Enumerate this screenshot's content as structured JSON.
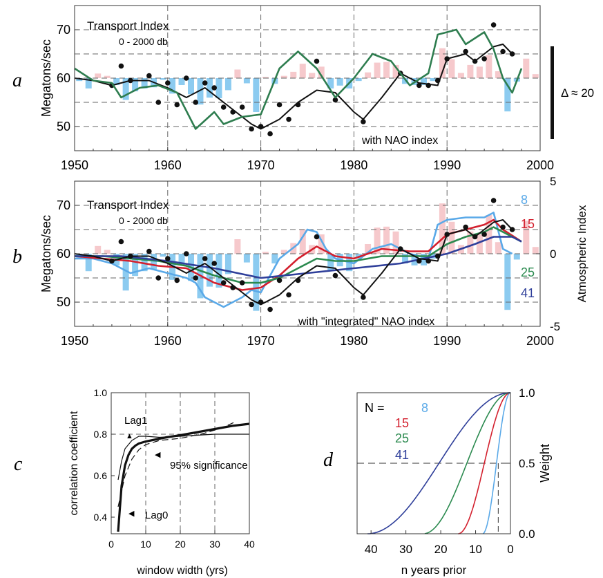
{
  "colors": {
    "nao_positive": "#f6c9cc",
    "nao_negative": "#8ccbf0",
    "black": "#111111",
    "green_a": "#2e7d4f",
    "n8": "#5aa9e8",
    "n15": "#d3202e",
    "n25": "#2b8a4f",
    "n41": "#2f3f9a",
    "grid": "#666666"
  },
  "chart_data": [
    {
      "panel": "a",
      "type": "line",
      "panel_label": "a",
      "title": "Transport Index",
      "subtitle": "0 - 2000 db",
      "ylabel": "Megatons/sec",
      "annotation": "with NAO index",
      "scale_bar_label": "Δ ≈ 20",
      "xlim": [
        1950,
        2000
      ],
      "ylim": [
        45,
        75
      ],
      "xticks": [
        1950,
        1960,
        1970,
        1980,
        1990,
        2000
      ],
      "yticks": [
        50,
        60,
        70
      ],
      "grid": true,
      "series": [
        {
          "kind": "points",
          "color_key": "black",
          "x": [
            1954,
            1955,
            1956,
            1958,
            1959,
            1960,
            1961,
            1962,
            1963,
            1964,
            1965,
            1966,
            1967,
            1968,
            1969,
            1970,
            1971,
            1972,
            1973,
            1974,
            1976,
            1978,
            1981,
            1985,
            1987,
            1988,
            1989,
            1990,
            1992,
            1993,
            1994,
            1995,
            1996,
            1997
          ],
          "y": [
            58.5,
            62.5,
            59.5,
            60.5,
            55,
            59,
            54.5,
            60,
            55,
            59,
            58,
            54,
            53,
            54,
            49.5,
            50,
            48.5,
            54.5,
            51.5,
            54.5,
            63.5,
            55.5,
            51,
            61,
            58.5,
            58.5,
            59.5,
            64,
            65.5,
            63.5,
            64,
            71,
            65.5,
            65
          ]
        },
        {
          "kind": "line",
          "color_key": "black",
          "x": [
            1950,
            1952,
            1954,
            1956,
            1958,
            1960,
            1962,
            1964,
            1966,
            1968,
            1969,
            1970,
            1972,
            1974,
            1976,
            1978,
            1980,
            1981,
            1983,
            1985,
            1987,
            1989,
            1990,
            1992,
            1993,
            1995,
            1996,
            1997
          ],
          "y": [
            60,
            59.5,
            58.5,
            59.5,
            59.5,
            58,
            56,
            58,
            55,
            52,
            50.5,
            49.5,
            51.5,
            55,
            57.5,
            57,
            53,
            51.5,
            56,
            61,
            59,
            58.5,
            64,
            65,
            63.5,
            66.5,
            67,
            65
          ]
        },
        {
          "kind": "line",
          "color_key": "green_a",
          "x": [
            1950,
            1952,
            1954,
            1955,
            1957,
            1959,
            1961,
            1963,
            1965,
            1966,
            1968,
            1970,
            1972,
            1974,
            1976,
            1978,
            1980,
            1982,
            1984,
            1986,
            1988,
            1989,
            1991,
            1992,
            1994,
            1995,
            1996,
            1997,
            1998
          ],
          "y": [
            62,
            59.5,
            59,
            56,
            58,
            58.5,
            57,
            49.5,
            53,
            50.5,
            52,
            52.5,
            62,
            65.5,
            62,
            56,
            60,
            65,
            63.5,
            58.5,
            61,
            69,
            70,
            67,
            69.5,
            66,
            60,
            57,
            62
          ]
        }
      ],
      "bars": {
        "x": [
          1950,
          1951,
          1952,
          1953,
          1954,
          1955,
          1956,
          1957,
          1958,
          1959,
          1960,
          1961,
          1962,
          1963,
          1964,
          1965,
          1966,
          1967,
          1968,
          1969,
          1970,
          1971,
          1972,
          1973,
          1974,
          1975,
          1976,
          1977,
          1978,
          1979,
          1980,
          1981,
          1982,
          1983,
          1984,
          1985,
          1986,
          1987,
          1988,
          1989,
          1990,
          1991,
          1992,
          1993,
          1994,
          1995,
          1996,
          1997,
          1998,
          1999
        ],
        "values": [
          -0.5,
          -1.8,
          0.8,
          0.4,
          -1.2,
          -3.8,
          -2.3,
          -1.8,
          -1.6,
          -0.3,
          -2.7,
          -1.2,
          -2.8,
          -4.6,
          -3.4,
          -3.5,
          -2.1,
          1.5,
          -0.9,
          -5.9,
          0.2,
          -1.0,
          0.4,
          1.1,
          2.5,
          0.9,
          2.0,
          -1.8,
          -1.3,
          -1.8,
          -0.5,
          1.0,
          2.7,
          2.8,
          2.3,
          -1.0,
          -1.2,
          -1.2,
          -0.5,
          5.2,
          3.3,
          0.9,
          2.3,
          2.0,
          4.0,
          1.2,
          -5.8,
          -0.6,
          3.4,
          0.7
        ]
      }
    },
    {
      "panel": "b",
      "type": "line",
      "panel_label": "b",
      "title": "Transport Index",
      "subtitle": "0 - 2000 db",
      "ylabel": "Megatons/sec",
      "y2label": "Atmospheric Index",
      "annotation": "with \"integrated\" NAO index",
      "xlim": [
        1950,
        2000
      ],
      "ylim": [
        45,
        75
      ],
      "y2lim": [
        -5,
        5
      ],
      "xticks": [
        1950,
        1960,
        1970,
        1980,
        1990,
        2000
      ],
      "yticks": [
        50,
        60,
        70
      ],
      "y2ticks": [
        -5,
        0,
        5
      ],
      "grid": true,
      "legend": [
        "8",
        "15",
        "25",
        "41"
      ],
      "series": [
        {
          "name": "8",
          "kind": "line",
          "color_key": "n8",
          "x": [
            1950,
            1952,
            1954,
            1956,
            1958,
            1960,
            1962,
            1963,
            1964,
            1966,
            1968,
            1969,
            1970,
            1972,
            1974,
            1975,
            1976,
            1977,
            1978,
            1980,
            1982,
            1984,
            1986,
            1988,
            1989,
            1990,
            1992,
            1994,
            1995,
            1996,
            1997
          ],
          "y": [
            59,
            59,
            58,
            56,
            57,
            56,
            55,
            54,
            51,
            49,
            51,
            52.5,
            52,
            59,
            62,
            65,
            64.5,
            61,
            59,
            58,
            61,
            62,
            60,
            59,
            66,
            67,
            67.5,
            67.5,
            68.5,
            61,
            60
          ]
        },
        {
          "name": "15",
          "kind": "line",
          "color_key": "n15",
          "x": [
            1950,
            1953,
            1956,
            1959,
            1962,
            1965,
            1968,
            1970,
            1972,
            1974,
            1976,
            1978,
            1980,
            1983,
            1986,
            1988,
            1990,
            1992,
            1994,
            1995,
            1996,
            1998
          ],
          "y": [
            59.5,
            59,
            58.5,
            57.5,
            57,
            54,
            52.5,
            53,
            55.5,
            59,
            61.5,
            59.5,
            59,
            61,
            60.5,
            60.5,
            64,
            65,
            66,
            67,
            65,
            62.5
          ]
        },
        {
          "name": "25",
          "kind": "line",
          "color_key": "n25",
          "x": [
            1950,
            1953,
            1956,
            1959,
            1962,
            1965,
            1968,
            1970,
            1972,
            1974,
            1976,
            1978,
            1980,
            1983,
            1986,
            1988,
            1990,
            1992,
            1994,
            1995,
            1996,
            1998
          ],
          "y": [
            59.5,
            59.5,
            59,
            58.5,
            57.5,
            55.5,
            54,
            54,
            55,
            57,
            59,
            58.5,
            58.5,
            59.5,
            59.5,
            59.5,
            62,
            63.5,
            64.5,
            65.5,
            64.5,
            62.5
          ]
        },
        {
          "name": "41",
          "kind": "line",
          "color_key": "n41",
          "x": [
            1950,
            1955,
            1960,
            1965,
            1970,
            1975,
            1980,
            1985,
            1990,
            1993,
            1995,
            1997,
            1998
          ],
          "y": [
            59.5,
            59.5,
            58.5,
            57,
            55,
            56,
            57,
            58,
            60,
            62,
            63.5,
            63.5,
            62.5
          ]
        },
        {
          "kind": "line",
          "color_key": "black",
          "x": [
            1950,
            1952,
            1954,
            1956,
            1958,
            1960,
            1962,
            1964,
            1966,
            1968,
            1969,
            1970,
            1972,
            1974,
            1976,
            1978,
            1980,
            1981,
            1983,
            1985,
            1987,
            1989,
            1990,
            1992,
            1993,
            1995,
            1996,
            1997
          ],
          "y": [
            60,
            59.5,
            58.5,
            59.5,
            59.5,
            58,
            56,
            58,
            55,
            52,
            50.5,
            49.5,
            51.5,
            55,
            57.5,
            57,
            53,
            51.5,
            56,
            61,
            59,
            58.5,
            64,
            65,
            63.5,
            66.5,
            67,
            65
          ]
        },
        {
          "kind": "points",
          "color_key": "black",
          "x": [
            1954,
            1955,
            1956,
            1958,
            1959,
            1960,
            1961,
            1962,
            1963,
            1964,
            1965,
            1966,
            1967,
            1968,
            1969,
            1970,
            1971,
            1972,
            1973,
            1974,
            1976,
            1978,
            1981,
            1985,
            1987,
            1988,
            1989,
            1990,
            1992,
            1993,
            1994,
            1995,
            1996,
            1997
          ],
          "y": [
            58.5,
            62.5,
            59.5,
            60.5,
            55,
            59,
            54.5,
            60,
            55,
            59,
            58,
            54,
            53,
            54,
            49.5,
            50,
            48.5,
            54.5,
            51.5,
            54.5,
            63.5,
            55.5,
            51,
            61,
            58.5,
            58.5,
            59.5,
            64,
            65.5,
            63.5,
            64,
            71,
            65.5,
            65
          ]
        }
      ]
    },
    {
      "panel": "c",
      "type": "line",
      "panel_label": "c",
      "xlabel": "window width (yrs)",
      "ylabel": "correlation coefficient",
      "xlim": [
        0,
        40
      ],
      "ylim": [
        0.32,
        1.0
      ],
      "xticks": [
        0,
        10,
        20,
        30,
        40
      ],
      "yticks": [
        0.4,
        0.6,
        0.8,
        1.0
      ],
      "grid": true,
      "annotations": [
        "Lag1",
        "95% significance",
        "Lag0"
      ],
      "series": [
        {
          "name": "Lag0",
          "kind": "line",
          "style": "thick",
          "x": [
            2,
            3,
            4,
            5,
            6,
            7,
            8,
            10,
            13,
            16,
            20,
            25,
            30,
            35,
            40
          ],
          "y": [
            0.33,
            0.55,
            0.65,
            0.7,
            0.73,
            0.745,
            0.755,
            0.765,
            0.775,
            0.785,
            0.795,
            0.81,
            0.825,
            0.84,
            0.85
          ]
        },
        {
          "name": "Lag1",
          "kind": "line",
          "style": "thin",
          "x": [
            2,
            3,
            4,
            6,
            8,
            10,
            14,
            20,
            30,
            40
          ],
          "y": [
            0.58,
            0.67,
            0.73,
            0.77,
            0.79,
            0.79,
            0.785,
            0.79,
            0.8,
            0.8
          ]
        },
        {
          "name": "95% significance",
          "kind": "line",
          "style": "dashed",
          "x": [
            2,
            4,
            6,
            8,
            10,
            14,
            20,
            26,
            32,
            36
          ],
          "y": [
            0.45,
            0.6,
            0.68,
            0.725,
            0.75,
            0.77,
            0.78,
            0.8,
            0.83,
            0.86
          ]
        }
      ]
    },
    {
      "panel": "d",
      "type": "line",
      "panel_label": "d",
      "xlabel": "n years prior",
      "ylabel": "Weight",
      "legend_prefix": "N = ",
      "xlim": [
        44,
        0
      ],
      "ylim": [
        0,
        1
      ],
      "xticks": [
        40,
        30,
        20,
        10,
        0
      ],
      "yticks": [
        0.0,
        0.5,
        1.0
      ],
      "ytick_labels": [
        "0.0",
        "0.5",
        "1.0"
      ],
      "series": [
        {
          "name": "8",
          "color_key": "n8",
          "N": 8
        },
        {
          "name": "15",
          "color_key": "n15",
          "N": 15
        },
        {
          "name": "25",
          "color_key": "n25",
          "N": 25
        },
        {
          "name": "41",
          "color_key": "n41",
          "N": 41
        }
      ]
    }
  ]
}
